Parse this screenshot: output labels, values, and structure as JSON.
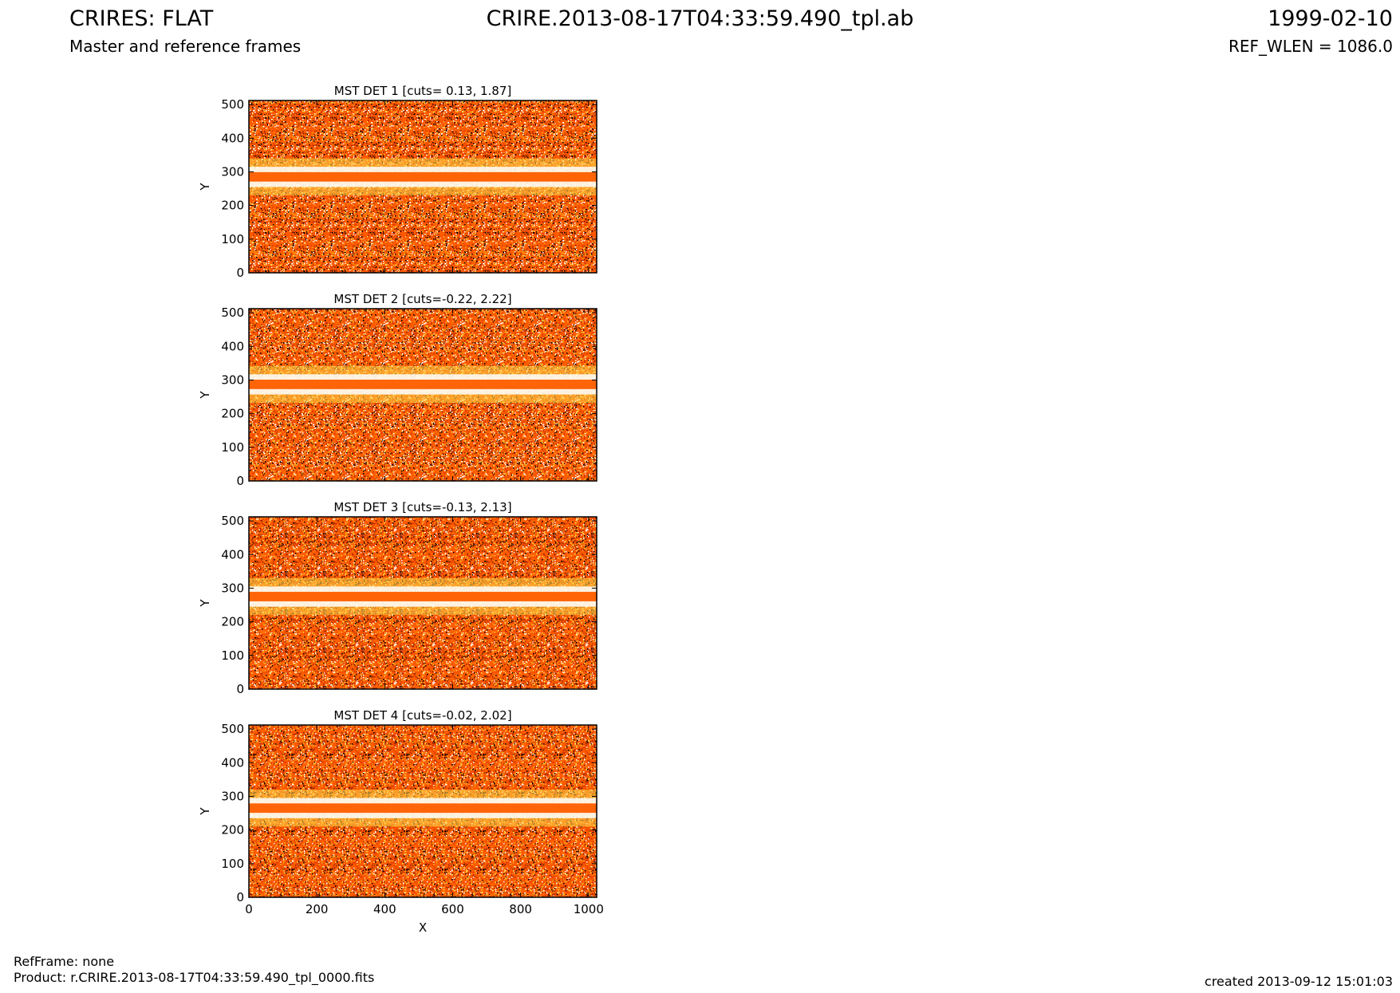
{
  "header": {
    "title_left": "CRIRES: FLAT",
    "subtitle_left": "Master and reference frames",
    "title_center": "CRIRE.2013-08-17T04:33:59.490_tpl.ab",
    "title_right": "1999-02-10",
    "subtitle_right": "REF_WLEN = 1086.0"
  },
  "footer": {
    "refframe": "RefFrame: none",
    "product": "Product: r.CRIRE.2013-08-17T04:33:59.490_tpl_0000.fits",
    "created": "created 2013-09-12 15:01:03"
  },
  "colors": {
    "band": "#ff6407",
    "noise": [
      "#ff5a00",
      "#ff7a10",
      "#e03a00",
      "#c02800",
      "#ffb020",
      "#ffe060",
      "#ffffff",
      "#000000",
      "#802000"
    ]
  },
  "chart_data": [
    {
      "type": "heatmap",
      "title": "MST DET 1 [cuts= 0.13, 1.87]",
      "ylabel": "Y",
      "xlabel": "",
      "xlim": [
        0,
        1024
      ],
      "ylim": [
        0,
        512
      ],
      "yticks": [
        0,
        100,
        200,
        300,
        400,
        500
      ],
      "xticks": [
        0,
        200,
        400,
        600,
        800,
        1000
      ],
      "show_xticklabels": false,
      "band_center_y": 285
    },
    {
      "type": "heatmap",
      "title": "MST DET 2 [cuts=-0.22, 2.22]",
      "ylabel": "Y",
      "xlabel": "",
      "xlim": [
        0,
        1024
      ],
      "ylim": [
        0,
        512
      ],
      "yticks": [
        0,
        100,
        200,
        300,
        400,
        500
      ],
      "xticks": [
        0,
        200,
        400,
        600,
        800,
        1000
      ],
      "show_xticklabels": false,
      "band_center_y": 287
    },
    {
      "type": "heatmap",
      "title": "MST DET 3 [cuts=-0.13, 2.13]",
      "ylabel": "Y",
      "xlabel": "",
      "xlim": [
        0,
        1024
      ],
      "ylim": [
        0,
        512
      ],
      "yticks": [
        0,
        100,
        200,
        300,
        400,
        500
      ],
      "xticks": [
        0,
        200,
        400,
        600,
        800,
        1000
      ],
      "show_xticklabels": false,
      "band_center_y": 275
    },
    {
      "type": "heatmap",
      "title": "MST DET 4 [cuts=-0.02, 2.02]",
      "ylabel": "Y",
      "xlabel": "X",
      "xlim": [
        0,
        1024
      ],
      "ylim": [
        0,
        512
      ],
      "yticks": [
        0,
        100,
        200,
        300,
        400,
        500
      ],
      "xticks": [
        0,
        200,
        400,
        600,
        800,
        1000
      ],
      "show_xticklabels": true,
      "band_center_y": 265
    }
  ]
}
